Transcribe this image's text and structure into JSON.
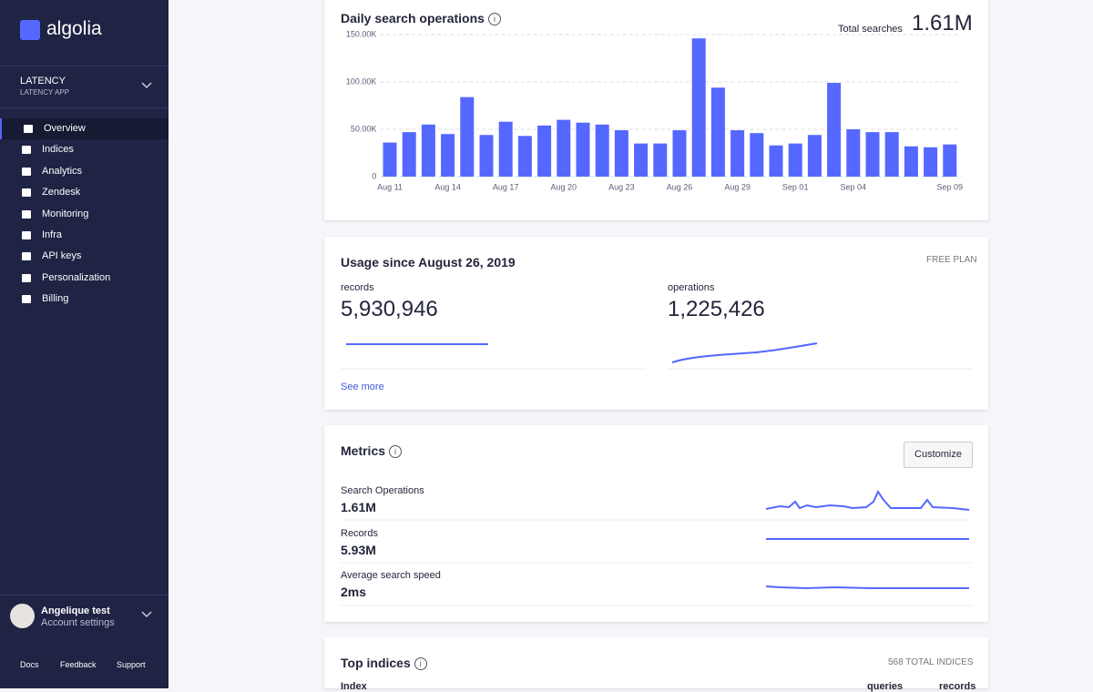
{
  "sidebar": {
    "logo": "algolia",
    "app": {
      "name": "LATENCY",
      "subtitle": "LATENCY APP"
    },
    "nav": [
      "Overview",
      "Indices",
      "Analytics",
      "Zendesk",
      "Monitoring",
      "Infra",
      "API keys",
      "Personalization",
      "Billing"
    ],
    "user": {
      "name": "Angelique test",
      "link": "Account settings"
    },
    "footer": [
      "Docs",
      "Feedback",
      "Support"
    ]
  },
  "chart_data": {
    "type": "bar",
    "title": "Daily search operations",
    "total_label": "Total searches",
    "total_value": "1.61M",
    "categories": [
      "Aug 11",
      null,
      null,
      "Aug 14",
      null,
      null,
      "Aug 17",
      null,
      null,
      "Aug 20",
      null,
      null,
      "Aug 23",
      null,
      null,
      "Aug 26",
      null,
      null,
      "Aug 29",
      null,
      null,
      "Sep 01",
      null,
      null,
      "Sep 04",
      null,
      null,
      null,
      null,
      "Sep 09"
    ],
    "values": [
      36000,
      47000,
      55000,
      45000,
      84000,
      44000,
      58000,
      43000,
      54000,
      60000,
      57000,
      55000,
      49000,
      35000,
      35000,
      49000,
      146000,
      94000,
      49000,
      46000,
      33000,
      35000,
      44000,
      99000,
      50000,
      47000,
      47000,
      32000,
      31000,
      34000
    ],
    "color": "#5468ff",
    "ylim": [
      0,
      150000
    ],
    "yticks": [
      0,
      {
        "value": 50000,
        "label": "50.00K"
      },
      {
        "value": 100000,
        "label": "100.00K"
      },
      {
        "value": 150000,
        "label": "150.00K"
      }
    ],
    "grid": true
  },
  "usage": {
    "title": "Usage since August 26, 2019",
    "plan": "FREE PLAN",
    "records": {
      "label": "records",
      "value": "5,930,946"
    },
    "operations": {
      "label": "operations",
      "value": "1,225,426"
    },
    "link": "See more"
  },
  "metrics": {
    "title": "Metrics",
    "button": "Customize",
    "rows": [
      {
        "label": "Search Operations",
        "value": "1.61M"
      },
      {
        "label": "Records",
        "value": "5.93M"
      },
      {
        "label": "Average search speed",
        "value": "2ms"
      }
    ]
  },
  "top_indices": {
    "title": "Top indices",
    "count": "568 TOTAL INDICES",
    "columns": [
      "Index",
      "queries",
      "records"
    ]
  }
}
